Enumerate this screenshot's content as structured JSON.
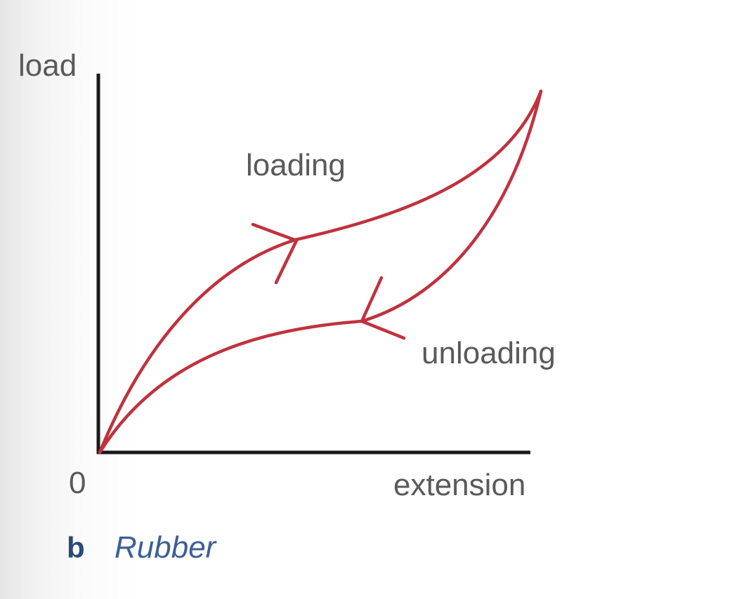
{
  "diagram": {
    "y_axis_label": "load",
    "x_axis_label": "extension",
    "origin_label": "0",
    "loading_label": "loading",
    "unloading_label": "unloading",
    "caption_letter": "b",
    "caption_text": "Rubber"
  },
  "colors": {
    "curve": "#c0323e",
    "axis": "#1a1a1a",
    "label_text": "#5a5a5a",
    "caption": "#3c5f94"
  }
}
